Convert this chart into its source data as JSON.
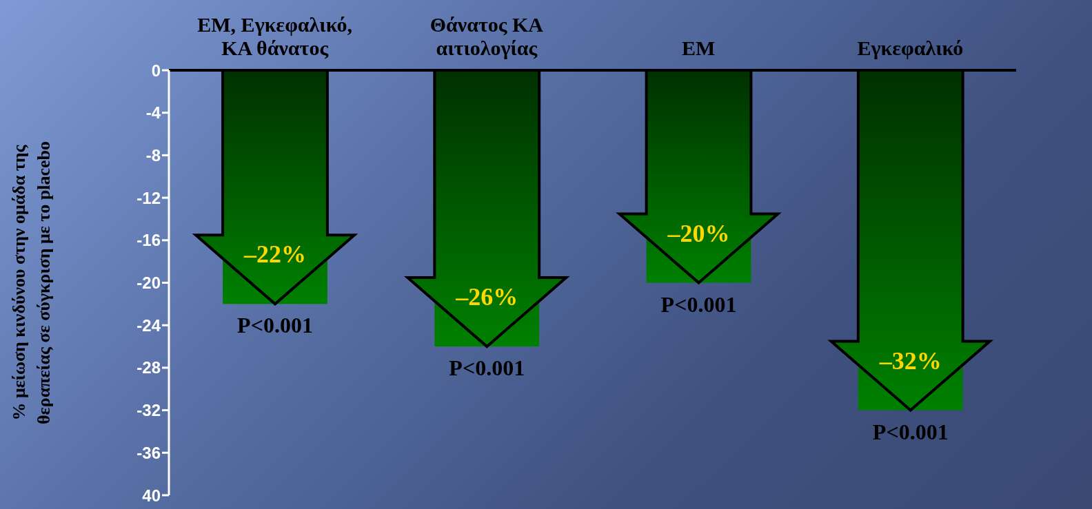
{
  "chart_data": {
    "type": "bar",
    "categories": [
      "ΕΜ, Εγκεφαλικό, ΚΑ θάνατος",
      "Θάνατος ΚΑ αιτιολογίας",
      "ΕΜ",
      "Εγκεφαλικό"
    ],
    "values": [
      -22,
      -26,
      -20,
      -32
    ],
    "value_labels": [
      "–22%",
      "–26%",
      "–20%",
      "–32%"
    ],
    "color": "#008000",
    "ylabel": "% μείωση κινδύνου στην ομάδα της θεραπείας σε σύγκριση με το placebo",
    "ylim": [
      -40,
      0
    ],
    "yticks": [
      0,
      -4,
      -8,
      -12,
      -16,
      -20,
      -24,
      -28,
      -32,
      -36,
      {
        "value": -40,
        "label": "40"
      }
    ],
    "annotations": [
      {
        "text": "P<0.001",
        "x": "ΕΜ, Εγκεφαλικό, ΚΑ θάνατος",
        "y": -22
      },
      {
        "text": "P<0.001",
        "x": "Θάνατος ΚΑ αιτιολογίας",
        "y": -26
      },
      {
        "text": "P<0.001",
        "x": "ΕΜ",
        "y": -20
      },
      {
        "text": "P<0.001",
        "x": "Εγκεφαλικό",
        "y": -32
      }
    ],
    "tick_labels": true
  }
}
